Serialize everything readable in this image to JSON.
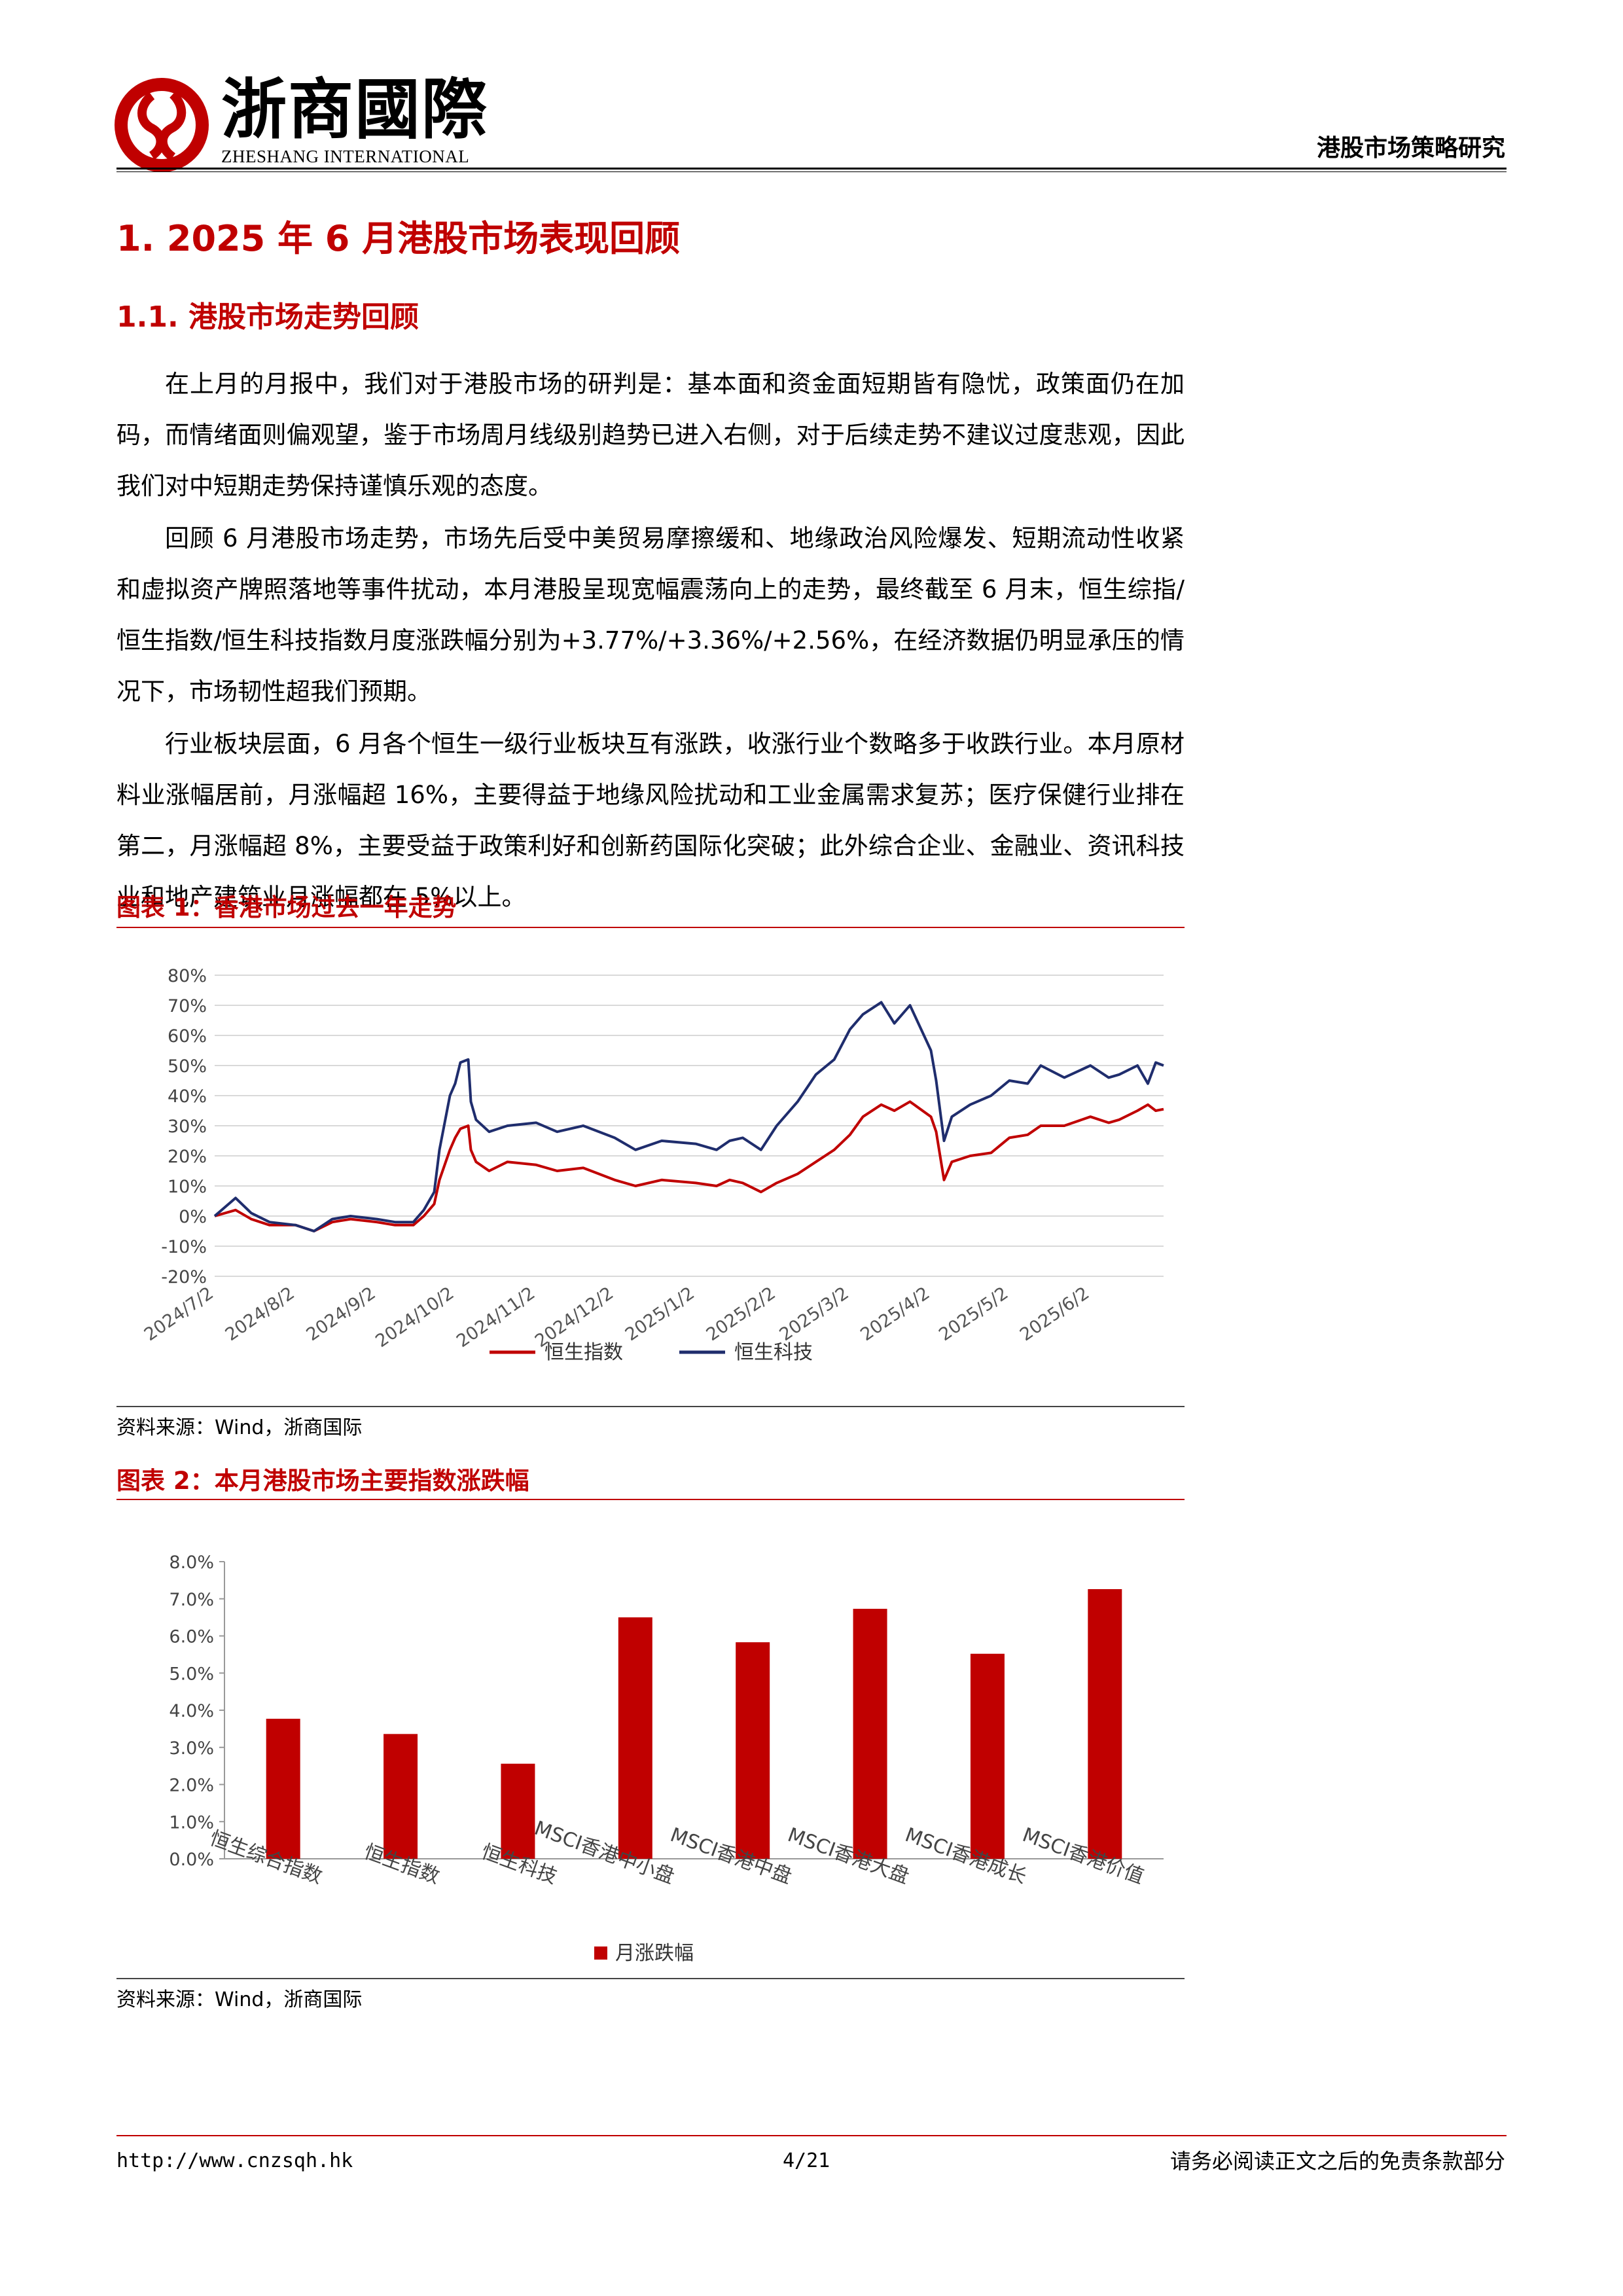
{
  "header": {
    "logo_cn": "浙商國際",
    "logo_en": "ZHESHANG INTERNATIONAL",
    "report_type": "港股市场策略研究"
  },
  "section": {
    "h1": "1. 2025 年 6 月港股市场表现回顾",
    "h2": "1.1. 港股市场走势回顾",
    "paragraphs": [
      "在上月的月报中，我们对于港股市场的研判是：基本面和资金面短期皆有隐忧，政策面仍在加码，而情绪面则偏观望，鉴于市场周月线级别趋势已进入右侧，对于后续走势不建议过度悲观，因此我们对中短期走势保持谨慎乐观的态度。",
      "回顾 6 月港股市场走势，市场先后受中美贸易摩擦缓和、地缘政治风险爆发、短期流动性收紧和虚拟资产牌照落地等事件扰动，本月港股呈现宽幅震荡向上的走势，最终截至 6 月末，恒生综指/恒生指数/恒生科技指数月度涨跌幅分别为+3.77%/+3.36%/+2.56%，在经济数据仍明显承压的情况下，市场韧性超我们预期。",
      "行业板块层面，6 月各个恒生一级行业板块互有涨跌，收涨行业个数略多于收跌行业。本月原材料业涨幅居前，月涨幅超 16%，主要得益于地缘风险扰动和工业金属需求复苏；医疗保健行业排在第二，月涨幅超 8%，主要受益于政策利好和创新药国际化突破；此外综合企业、金融业、资讯科技业和地产建筑业月涨幅都在 5%以上。"
    ]
  },
  "figure1": {
    "title": "图表 1：香港市场过去一年走势",
    "source": "资料来源：Wind，浙商国际"
  },
  "figure2": {
    "title": "图表 2：本月港股市场主要指数涨跌幅",
    "source": "资料来源：Wind，浙商国际"
  },
  "chart_data": [
    {
      "type": "line",
      "ylim": [
        -0.2,
        0.8
      ],
      "yticks": [
        "80%",
        "70%",
        "60%",
        "50%",
        "40%",
        "30%",
        "20%",
        "10%",
        "0%",
        "-10%",
        "-20%"
      ],
      "ytick_values": [
        0.8,
        0.7,
        0.6,
        0.5,
        0.4,
        0.3,
        0.2,
        0.1,
        0,
        -0.1,
        -0.2
      ],
      "xticks": [
        "2024/7/2",
        "2024/8/2",
        "2024/9/2",
        "2024/10/2",
        "2024/11/2",
        "2024/12/2",
        "2025/1/2",
        "2025/2/2",
        "2025/3/2",
        "2025/4/2",
        "2025/5/2",
        "2025/6/2"
      ],
      "grid": true,
      "legend": "bottom",
      "series": [
        {
          "name": "恒生指数",
          "color": "#c00000",
          "x": [
            "2024/7/2",
            "2024/7/10",
            "2024/7/16",
            "2024/7/23",
            "2024/8/2",
            "2024/8/9",
            "2024/8/16",
            "2024/8/23",
            "2024/9/2",
            "2024/9/9",
            "2024/9/16",
            "2024/9/20",
            "2024/9/24",
            "2024/9/26",
            "2024/9/30",
            "2024/10/2",
            "2024/10/4",
            "2024/10/7",
            "2024/10/8",
            "2024/10/10",
            "2024/10/15",
            "2024/10/22",
            "2024/11/2",
            "2024/11/10",
            "2024/11/20",
            "2024/12/2",
            "2024/12/10",
            "2024/12/20",
            "2025/1/2",
            "2025/1/10",
            "2025/1/15",
            "2025/1/20",
            "2025/1/27",
            "2025/2/2",
            "2025/2/10",
            "2025/2/17",
            "2025/2/24",
            "2025/3/2",
            "2025/3/7",
            "2025/3/14",
            "2025/3/19",
            "2025/3/25",
            "2025/4/2",
            "2025/4/4",
            "2025/4/7",
            "2025/4/10",
            "2025/4/17",
            "2025/4/25",
            "2025/5/2",
            "2025/5/9",
            "2025/5/14",
            "2025/5/23",
            "2025/6/2",
            "2025/6/9",
            "2025/6/13",
            "2025/6/20",
            "2025/6/24",
            "2025/6/27",
            "2025/6/30"
          ],
          "values": [
            0.0,
            0.02,
            -0.01,
            -0.03,
            -0.03,
            -0.05,
            -0.02,
            -0.01,
            -0.02,
            -0.03,
            -0.03,
            0.0,
            0.04,
            0.12,
            0.22,
            0.26,
            0.29,
            0.3,
            0.22,
            0.18,
            0.15,
            0.18,
            0.17,
            0.15,
            0.16,
            0.12,
            0.1,
            0.12,
            0.11,
            0.1,
            0.12,
            0.11,
            0.08,
            0.11,
            0.14,
            0.18,
            0.22,
            0.27,
            0.33,
            0.37,
            0.35,
            0.38,
            0.33,
            0.28,
            0.12,
            0.18,
            0.2,
            0.21,
            0.26,
            0.27,
            0.3,
            0.3,
            0.33,
            0.31,
            0.32,
            0.35,
            0.37,
            0.35,
            0.355
          ]
        },
        {
          "name": "恒生科技",
          "color": "#1f2d6d",
          "x": [
            "2024/7/2",
            "2024/7/10",
            "2024/7/16",
            "2024/7/23",
            "2024/8/2",
            "2024/8/9",
            "2024/8/16",
            "2024/8/23",
            "2024/9/2",
            "2024/9/9",
            "2024/9/16",
            "2024/9/20",
            "2024/9/24",
            "2024/9/26",
            "2024/9/30",
            "2024/10/2",
            "2024/10/4",
            "2024/10/7",
            "2024/10/8",
            "2024/10/10",
            "2024/10/15",
            "2024/10/22",
            "2024/11/2",
            "2024/11/10",
            "2024/11/20",
            "2024/12/2",
            "2024/12/10",
            "2024/12/20",
            "2025/1/2",
            "2025/1/10",
            "2025/1/15",
            "2025/1/20",
            "2025/1/27",
            "2025/2/2",
            "2025/2/10",
            "2025/2/17",
            "2025/2/24",
            "2025/3/2",
            "2025/3/7",
            "2025/3/14",
            "2025/3/19",
            "2025/3/25",
            "2025/4/2",
            "2025/4/4",
            "2025/4/7",
            "2025/4/10",
            "2025/4/17",
            "2025/4/25",
            "2025/5/2",
            "2025/5/9",
            "2025/5/14",
            "2025/5/23",
            "2025/6/2",
            "2025/6/9",
            "2025/6/13",
            "2025/6/20",
            "2025/6/24",
            "2025/6/27",
            "2025/6/30"
          ],
          "values": [
            0.0,
            0.06,
            0.01,
            -0.02,
            -0.03,
            -0.05,
            -0.01,
            0.0,
            -0.01,
            -0.02,
            -0.02,
            0.02,
            0.08,
            0.22,
            0.4,
            0.44,
            0.51,
            0.52,
            0.38,
            0.32,
            0.28,
            0.3,
            0.31,
            0.28,
            0.3,
            0.26,
            0.22,
            0.25,
            0.24,
            0.22,
            0.25,
            0.26,
            0.22,
            0.3,
            0.38,
            0.47,
            0.52,
            0.62,
            0.67,
            0.71,
            0.64,
            0.7,
            0.55,
            0.45,
            0.25,
            0.33,
            0.37,
            0.4,
            0.45,
            0.44,
            0.5,
            0.46,
            0.5,
            0.46,
            0.47,
            0.5,
            0.44,
            0.51,
            0.5
          ]
        }
      ]
    },
    {
      "type": "bar",
      "categories": [
        "恒生综合指数",
        "恒生指数",
        "恒生科技",
        "MSCI香港中小盘",
        "MSCI香港中盘",
        "MSCI香港大盘",
        "MSCI香港成长",
        "MSCI香港价值"
      ],
      "series": [
        {
          "name": "月涨跌幅",
          "color": "#c00000",
          "values": [
            0.0377,
            0.0336,
            0.0256,
            0.065,
            0.0583,
            0.0673,
            0.0552,
            0.0726
          ]
        }
      ],
      "ylim": [
        0,
        0.08
      ],
      "yticks": [
        "8.0%",
        "7.0%",
        "6.0%",
        "5.0%",
        "4.0%",
        "3.0%",
        "2.0%",
        "1.0%",
        "0.0%"
      ],
      "ytick_values": [
        0.08,
        0.07,
        0.06,
        0.05,
        0.04,
        0.03,
        0.02,
        0.01,
        0
      ],
      "grid": false,
      "legend": "bottom"
    }
  ],
  "footer": {
    "url": "http://www.cnzsqh.hk",
    "page": "4/21",
    "disclaimer": "请务必阅读正文之后的免责条款部分"
  },
  "colors": {
    "brand_red": "#c00000",
    "navy": "#1f2d6d"
  }
}
